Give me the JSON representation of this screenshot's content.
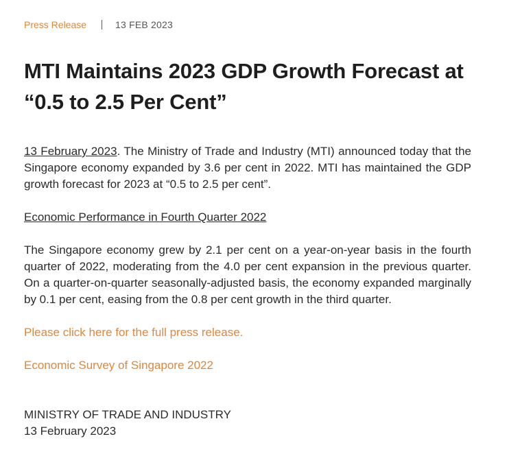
{
  "meta": {
    "category": "Press Release",
    "date": "13 FEB 2023"
  },
  "title": "MTI Maintains 2023 GDP Growth Forecast at “0.5 to 2.5 Per Cent”",
  "intro": {
    "date_link": "13 February 2023",
    "text": ". The Ministry of Trade and Industry (MTI) announced today that the Singapore economy expanded by 3.6 per cent in 2022. MTI has maintained the GDP growth forecast for 2023 at “0.5 to 2.5 per cent”."
  },
  "section_heading": "Economic Performance in Fourth Quarter 2022",
  "performance_paragraph": "The Singapore economy grew by 2.1 per cent on a year-on-year basis in the fourth quarter of 2022, moderating from the 4.0 per cent expansion in the previous quarter. On a quarter-on-quarter seasonally-adjusted basis, the economy expanded marginally by 0.1 per cent, easing from the 0.8 per cent growth in the third quarter.",
  "links": {
    "press_release": "Please click here for the full press release.",
    "survey": "Economic Survey of Singapore 2022"
  },
  "signature": {
    "org": "MINISTRY OF TRADE AND INDUSTRY",
    "date": "13 February 2023"
  },
  "colors": {
    "accent": "#e0873a",
    "text": "#2b2b2b"
  }
}
